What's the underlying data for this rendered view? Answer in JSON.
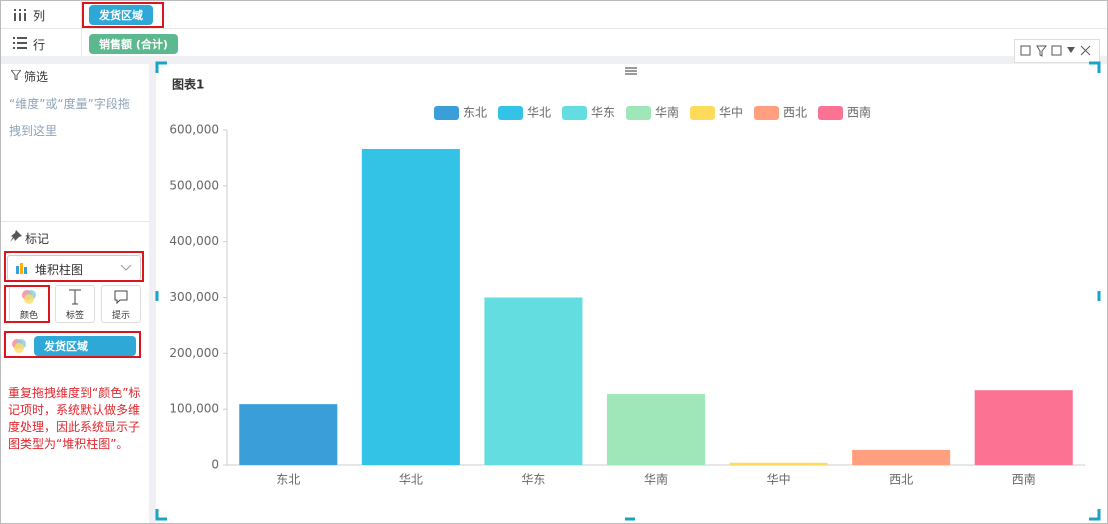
{
  "ui": {
    "columns_label": "列",
    "columns_pill": "发货区域",
    "rows_label": "行",
    "rows_pill": "销售额 (合计)",
    "filter_title": "筛选",
    "filter_hint": "“维度”或“度量”字段拖拽到这里",
    "marks_title": "标记",
    "mark_type": "堆积柱图",
    "mark_buttons": [
      "颜色",
      "标签",
      "提示"
    ],
    "color_pill": "发货区域",
    "note": "重复拖拽维度到“颜色”标记项时，系统默认做多维度处理，因此系统显示子图类型为“堆积柱图”。"
  },
  "chart_data": {
    "type": "bar",
    "title": "图表1",
    "categories": [
      "东北",
      "华北",
      "华东",
      "华南",
      "华中",
      "西北",
      "西南"
    ],
    "values": [
      109000,
      566000,
      300000,
      127000,
      4000,
      27000,
      134000
    ],
    "colors": [
      "#3a9fd8",
      "#33c3e6",
      "#64dde0",
      "#9fe6b8",
      "#ffdb5c",
      "#ff9f7f",
      "#fb7293"
    ],
    "ylim": [
      0,
      600000
    ],
    "yticks": [
      0,
      {
        "value": 100000,
        "label": "100,000"
      },
      {
        "value": 200000,
        "label": "200,000"
      },
      {
        "value": 300000,
        "label": "300,000"
      },
      {
        "value": 400000,
        "label": "400,000"
      },
      {
        "value": 500000,
        "label": "500,000"
      },
      {
        "value": 600000,
        "label": "600,000"
      }
    ],
    "grid": false,
    "legend": "top"
  }
}
